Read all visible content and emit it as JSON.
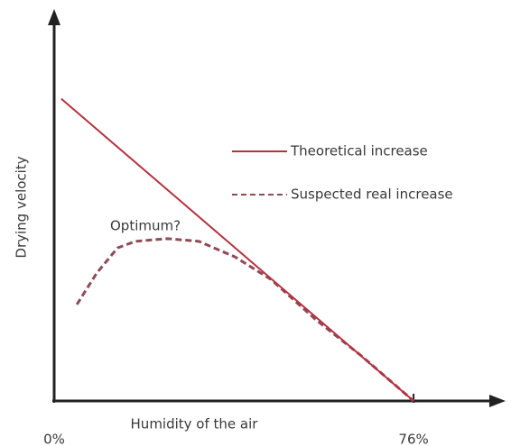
{
  "chart_data": {
    "type": "line",
    "xlabel": "Humidity of the air",
    "ylabel": "Drying velocity",
    "annotation": "Optimum?",
    "xlim": [
      0,
      94.5
    ],
    "ylim": [
      0,
      100
    ],
    "xticks": [
      {
        "value": 0,
        "label": "0%"
      },
      {
        "value": 76,
        "label": "76%"
      }
    ],
    "series": [
      {
        "name": "Theoretical increase",
        "color": "#b5323f",
        "dashed": false,
        "x": [
          1.5,
          76
        ],
        "values": [
          78,
          0
        ]
      },
      {
        "name": "Suspected real increase",
        "color": "#8e4a55",
        "dashed": true,
        "x": [
          4.8,
          9,
          13.4,
          17.2,
          23.9,
          30.6,
          38.2,
          45.8,
          55.4,
          65,
          76
        ],
        "values": [
          24.9,
          33,
          39.5,
          41.2,
          41.9,
          41.2,
          37.2,
          31.4,
          20.9,
          11.6,
          0
        ]
      }
    ]
  }
}
